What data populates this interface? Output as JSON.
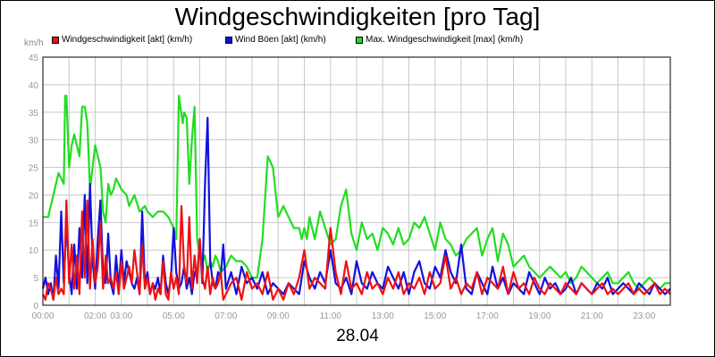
{
  "title": "Windgeschwindigkeiten [pro Tag]",
  "date_label": "28.04",
  "unit_label": "km/h",
  "legend": [
    {
      "label": "Windgeschwindigkeit [akt] (km/h)",
      "color": "#ee1111"
    },
    {
      "label": "Wind Böen [akt] (km/h)",
      "color": "#1111dd"
    },
    {
      "label": "Max. Windgeschwindigkeit [max] (km/h)",
      "color": "#22dd22"
    }
  ],
  "chart_data": {
    "type": "line",
    "title": "Windgeschwindigkeiten [pro Tag]",
    "xlabel": "28.04",
    "ylabel": "km/h",
    "ylim": [
      0,
      45
    ],
    "xlim": [
      "00:00",
      "24:00"
    ],
    "grid": true,
    "legend_position": "top",
    "y_ticks": [
      "0",
      "5",
      "10",
      "15",
      "20",
      "25",
      "30",
      "35",
      "40",
      "45"
    ],
    "x_ticks": [
      "00:00",
      "02:00",
      "03:00",
      "05:00",
      "07:00",
      "09:00",
      "11:00",
      "13:00",
      "15:00",
      "17:00",
      "19:00",
      "21:00",
      "23:00"
    ],
    "x_tick_hours": [
      0,
      2,
      3,
      5,
      7,
      9,
      11,
      13,
      15,
      17,
      19,
      21,
      23
    ],
    "series": [
      {
        "name": "Max. Windgeschwindigkeit [max] (km/h)",
        "color": "#22dd22",
        "x": [
          0.0,
          0.2,
          0.4,
          0.6,
          0.8,
          0.85,
          0.9,
          1.0,
          1.1,
          1.2,
          1.4,
          1.5,
          1.6,
          1.7,
          1.8,
          2.0,
          2.2,
          2.3,
          2.4,
          2.5,
          2.6,
          2.7,
          2.8,
          3.0,
          3.2,
          3.3,
          3.5,
          3.7,
          3.9,
          4.0,
          4.2,
          4.4,
          4.6,
          4.8,
          5.0,
          5.1,
          5.2,
          5.35,
          5.4,
          5.5,
          5.6,
          5.7,
          5.8,
          5.9,
          6.0,
          6.1,
          6.2,
          6.3,
          6.4,
          6.5,
          6.6,
          6.7,
          6.8,
          7.0,
          7.2,
          7.4,
          7.6,
          7.8,
          8.0,
          8.2,
          8.4,
          8.6,
          8.8,
          9.0,
          9.2,
          9.4,
          9.6,
          9.8,
          9.9,
          10.0,
          10.1,
          10.2,
          10.4,
          10.6,
          10.8,
          11.0,
          11.2,
          11.4,
          11.6,
          11.8,
          12.0,
          12.2,
          12.4,
          12.6,
          12.8,
          13.0,
          13.2,
          13.4,
          13.6,
          13.8,
          14.0,
          14.2,
          14.4,
          14.6,
          14.8,
          15.0,
          15.2,
          15.4,
          15.6,
          15.8,
          16.0,
          16.2,
          16.4,
          16.6,
          16.8,
          17.0,
          17.2,
          17.4,
          17.6,
          17.8,
          18.0,
          18.2,
          18.4,
          18.6,
          18.8,
          19.0,
          19.2,
          19.4,
          19.6,
          19.8,
          20.0,
          20.2,
          20.4,
          20.6,
          20.8,
          21.0,
          21.2,
          21.4,
          21.6,
          21.8,
          22.0,
          22.2,
          22.4,
          22.6,
          22.8,
          23.0,
          23.2,
          23.4,
          23.6,
          23.8,
          24.0
        ],
        "values": [
          16,
          16,
          20,
          24,
          22,
          38,
          38,
          25,
          29,
          31,
          27,
          36,
          36,
          33,
          21,
          29,
          25,
          17,
          15,
          22,
          20,
          21,
          23,
          21,
          20,
          18,
          20,
          17,
          18,
          17,
          16,
          17,
          17,
          16,
          14,
          12,
          38,
          33,
          35,
          34,
          22,
          30,
          36,
          12,
          9,
          8,
          9,
          6,
          8,
          7,
          9,
          8,
          6,
          7,
          9,
          8,
          8,
          7,
          5,
          5,
          12,
          27,
          25,
          16,
          18,
          16,
          14,
          14,
          12,
          14,
          12,
          16,
          12,
          17,
          14,
          11,
          12,
          18,
          21,
          13,
          10,
          15,
          12,
          13,
          10,
          14,
          13,
          11,
          14,
          11,
          12,
          15,
          14,
          16,
          13,
          10,
          15,
          12,
          11,
          9,
          10,
          12,
          13,
          14,
          9,
          12,
          14,
          8,
          13,
          11,
          7,
          8,
          9,
          7,
          6,
          5,
          6,
          7,
          6,
          5,
          6,
          4,
          5,
          7,
          6,
          5,
          4,
          5,
          6,
          4,
          4,
          5,
          6,
          4,
          3,
          4,
          5,
          4,
          3,
          4,
          4
        ]
      },
      {
        "name": "Wind Böen [akt] (km/h)",
        "color": "#1111dd",
        "x": [
          0.0,
          0.1,
          0.2,
          0.3,
          0.4,
          0.5,
          0.6,
          0.7,
          0.8,
          0.9,
          1.0,
          1.1,
          1.2,
          1.3,
          1.4,
          1.5,
          1.6,
          1.7,
          1.8,
          1.9,
          2.0,
          2.1,
          2.2,
          2.3,
          2.4,
          2.5,
          2.6,
          2.7,
          2.8,
          2.9,
          3.0,
          3.1,
          3.2,
          3.3,
          3.4,
          3.5,
          3.6,
          3.7,
          3.8,
          3.9,
          4.0,
          4.1,
          4.2,
          4.3,
          4.4,
          4.5,
          4.6,
          4.7,
          4.8,
          4.9,
          5.0,
          5.1,
          5.2,
          5.3,
          5.4,
          5.5,
          5.6,
          5.7,
          5.8,
          5.9,
          6.0,
          6.1,
          6.2,
          6.3,
          6.4,
          6.5,
          6.6,
          6.7,
          6.8,
          6.9,
          7.0,
          7.2,
          7.4,
          7.6,
          7.8,
          8.0,
          8.2,
          8.4,
          8.6,
          8.8,
          9.0,
          9.2,
          9.4,
          9.6,
          9.8,
          10.0,
          10.2,
          10.4,
          10.6,
          10.8,
          11.0,
          11.2,
          11.4,
          11.6,
          11.8,
          12.0,
          12.2,
          12.4,
          12.6,
          12.8,
          13.0,
          13.2,
          13.4,
          13.6,
          13.8,
          14.0,
          14.2,
          14.4,
          14.6,
          14.8,
          15.0,
          15.2,
          15.4,
          15.6,
          15.8,
          16.0,
          16.2,
          16.4,
          16.6,
          16.8,
          17.0,
          17.2,
          17.4,
          17.6,
          17.8,
          18.0,
          18.2,
          18.4,
          18.6,
          18.8,
          19.0,
          19.2,
          19.4,
          19.6,
          19.8,
          20.0,
          20.2,
          20.4,
          20.6,
          20.8,
          21.0,
          21.2,
          21.4,
          21.6,
          21.8,
          22.0,
          22.2,
          22.4,
          22.6,
          22.8,
          23.0,
          23.2,
          23.4,
          23.6,
          23.8,
          24.0
        ],
        "values": [
          3,
          5,
          2,
          4,
          1,
          9,
          3,
          17,
          4,
          15,
          6,
          2,
          11,
          3,
          14,
          5,
          20,
          4,
          22,
          8,
          3,
          12,
          19,
          6,
          4,
          13,
          4,
          2,
          9,
          3,
          10,
          4,
          8,
          6,
          4,
          3,
          5,
          2,
          17,
          4,
          6,
          2,
          4,
          3,
          5,
          2,
          9,
          4,
          2,
          5,
          14,
          6,
          3,
          4,
          7,
          3,
          5,
          2,
          6,
          5,
          12,
          4,
          22,
          34,
          8,
          4,
          3,
          6,
          5,
          11,
          3,
          6,
          2,
          7,
          4,
          5,
          3,
          6,
          2,
          4,
          3,
          2,
          4,
          3,
          2,
          8,
          5,
          3,
          6,
          4,
          10,
          4,
          3,
          5,
          2,
          8,
          4,
          3,
          6,
          4,
          3,
          7,
          5,
          3,
          6,
          2,
          6,
          8,
          4,
          3,
          7,
          5,
          10,
          6,
          4,
          11,
          3,
          2,
          6,
          4,
          2,
          7,
          3,
          5,
          2,
          4,
          3,
          2,
          6,
          4,
          2,
          5,
          3,
          4,
          2,
          3,
          5,
          2,
          4,
          3,
          2,
          4,
          3,
          5,
          2,
          3,
          4,
          3,
          2,
          4,
          3,
          2,
          4,
          3,
          2,
          3
        ]
      },
      {
        "name": "Windgeschwindigkeit [akt] (km/h)",
        "color": "#ee1111",
        "x": [
          0.0,
          0.1,
          0.2,
          0.3,
          0.4,
          0.5,
          0.6,
          0.7,
          0.8,
          0.9,
          1.0,
          1.1,
          1.2,
          1.3,
          1.4,
          1.5,
          1.6,
          1.7,
          1.8,
          1.9,
          2.0,
          2.1,
          2.2,
          2.3,
          2.4,
          2.5,
          2.6,
          2.7,
          2.8,
          2.9,
          3.0,
          3.1,
          3.2,
          3.3,
          3.4,
          3.5,
          3.6,
          3.7,
          3.8,
          3.9,
          4.0,
          4.1,
          4.2,
          4.3,
          4.4,
          4.5,
          4.6,
          4.7,
          4.8,
          4.9,
          5.0,
          5.1,
          5.2,
          5.3,
          5.4,
          5.5,
          5.6,
          5.7,
          5.8,
          5.9,
          6.0,
          6.1,
          6.2,
          6.3,
          6.4,
          6.5,
          6.6,
          6.7,
          6.8,
          6.9,
          7.0,
          7.2,
          7.4,
          7.6,
          7.8,
          8.0,
          8.2,
          8.4,
          8.6,
          8.8,
          9.0,
          9.2,
          9.4,
          9.6,
          9.8,
          10.0,
          10.2,
          10.4,
          10.6,
          10.8,
          11.0,
          11.2,
          11.4,
          11.6,
          11.8,
          12.0,
          12.2,
          12.4,
          12.6,
          12.8,
          13.0,
          13.2,
          13.4,
          13.6,
          13.8,
          14.0,
          14.2,
          14.4,
          14.6,
          14.8,
          15.0,
          15.2,
          15.4,
          15.6,
          15.8,
          16.0,
          16.2,
          16.4,
          16.6,
          16.8,
          17.0,
          17.2,
          17.4,
          17.6,
          17.8,
          18.0,
          18.2,
          18.4,
          18.6,
          18.8,
          19.0,
          19.2,
          19.4,
          19.6,
          19.8,
          20.0,
          20.2,
          20.4,
          20.6,
          20.8,
          21.0,
          21.2,
          21.4,
          21.6,
          21.8,
          22.0,
          22.2,
          22.4,
          22.6,
          22.8,
          23.0,
          23.2,
          23.4,
          23.6,
          23.8,
          24.0
        ],
        "values": [
          2,
          1,
          4,
          3,
          1,
          5,
          2,
          3,
          2,
          19,
          4,
          11,
          3,
          9,
          2,
          17,
          5,
          19,
          3,
          12,
          4,
          7,
          15,
          3,
          9,
          4,
          5,
          3,
          6,
          2,
          8,
          3,
          5,
          7,
          4,
          10,
          6,
          2,
          11,
          3,
          5,
          2,
          4,
          1,
          3,
          2,
          8,
          2,
          1,
          6,
          3,
          5,
          2,
          18,
          7,
          4,
          16,
          3,
          9,
          4,
          12,
          5,
          3,
          7,
          2,
          5,
          3,
          4,
          6,
          1,
          2,
          4,
          5,
          1,
          6,
          3,
          4,
          2,
          6,
          1,
          3,
          1,
          4,
          2,
          5,
          10,
          3,
          5,
          4,
          3,
          14,
          6,
          2,
          8,
          3,
          4,
          2,
          6,
          3,
          4,
          2,
          5,
          3,
          6,
          2,
          4,
          3,
          5,
          2,
          6,
          3,
          4,
          9,
          3,
          5,
          2,
          4,
          3,
          6,
          2,
          5,
          4,
          3,
          7,
          2,
          6,
          3,
          4,
          2,
          5,
          3,
          2,
          4,
          3,
          2,
          4,
          3,
          2,
          4,
          3,
          2,
          3,
          4,
          2,
          3,
          2,
          3,
          4,
          2,
          3,
          2,
          3,
          4,
          2,
          3,
          2
        ]
      }
    ]
  }
}
